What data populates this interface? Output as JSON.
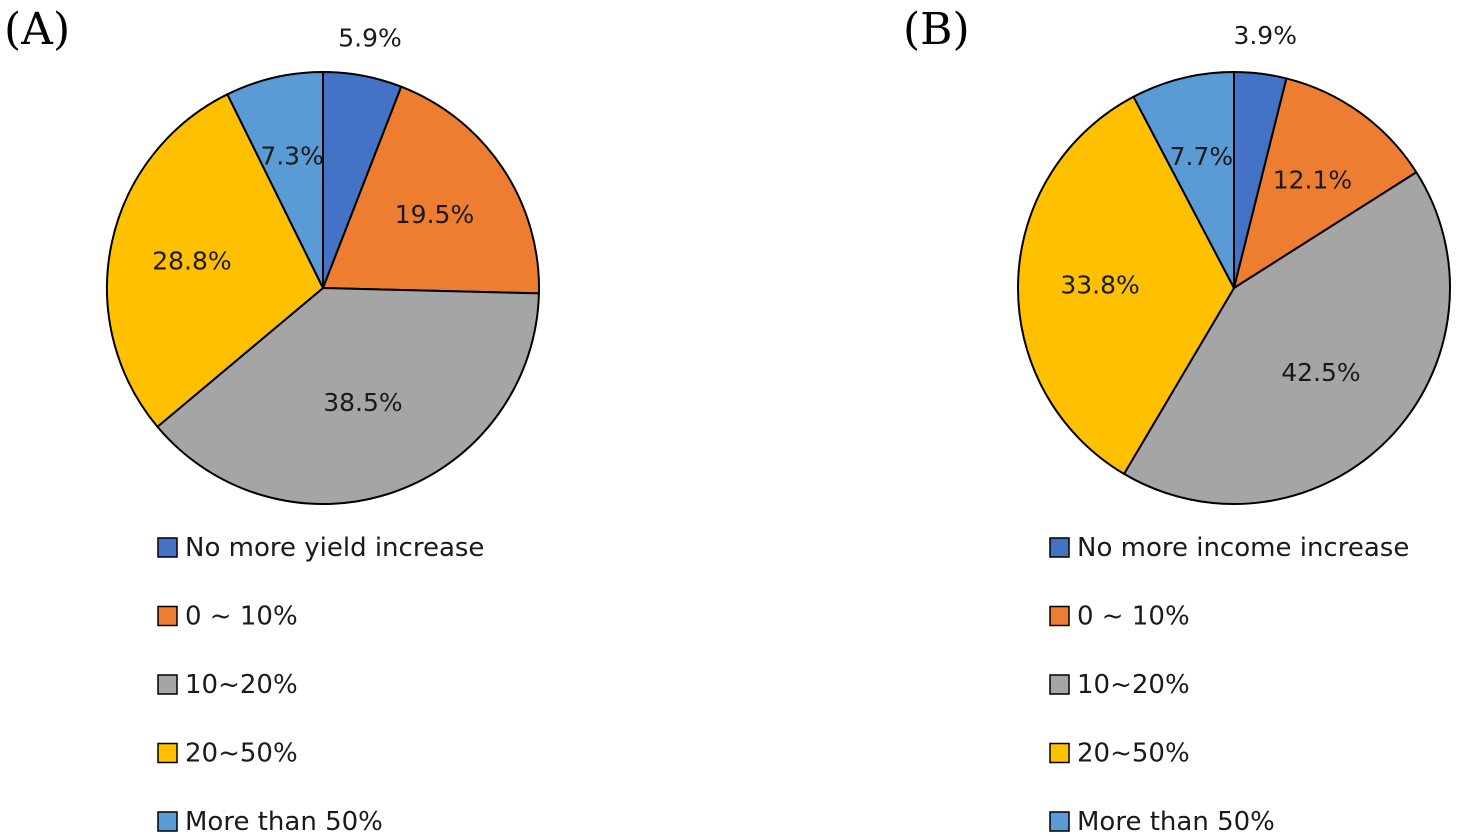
{
  "chart_data": [
    {
      "type": "pie",
      "panel_label": "(A)",
      "categories": [
        "No more yield increase",
        "0 ~ 10%",
        "10~20%",
        "20~50%",
        "More than 50%"
      ],
      "values": [
        5.9,
        19.5,
        38.5,
        28.8,
        7.3
      ],
      "data_labels": [
        "5.9%",
        "19.5%",
        "38.5%",
        "28.8%",
        "7.3%"
      ],
      "colors": [
        "#4472C4",
        "#ED7D31",
        "#A5A5A5",
        "#FFC000",
        "#5B9BD5"
      ],
      "legend_position": "bottom"
    },
    {
      "type": "pie",
      "panel_label": "(B)",
      "categories": [
        "No more income increase",
        "0 ~ 10%",
        "10~20%",
        "20~50%",
        "More than 50%"
      ],
      "values": [
        3.9,
        12.1,
        42.5,
        33.8,
        7.7
      ],
      "data_labels": [
        "3.9%",
        "12.1%",
        "42.5%",
        "33.8%",
        "7.7%"
      ],
      "colors": [
        "#4472C4",
        "#ED7D31",
        "#A5A5A5",
        "#FFC000",
        "#5B9BD5"
      ],
      "legend_position": "bottom"
    }
  ]
}
